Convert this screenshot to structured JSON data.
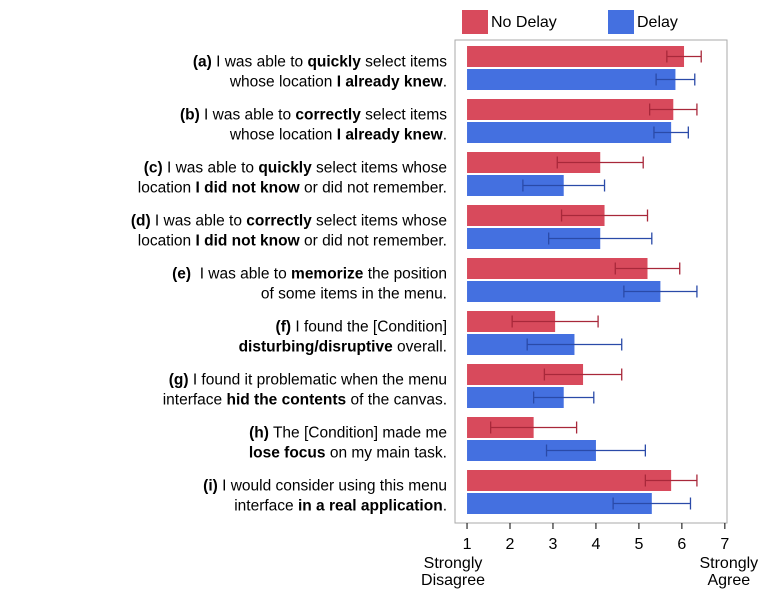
{
  "chart_data": {
    "type": "barh",
    "categories": [
      [
        [
          {
            "text": "(a)",
            "bold": true
          },
          {
            "text": " I was able to "
          },
          {
            "text": "quickly",
            "bold": true
          },
          {
            "text": " select items"
          }
        ],
        [
          {
            "text": "whose location "
          },
          {
            "text": "I already knew",
            "bold": true
          },
          {
            "text": "."
          }
        ]
      ],
      [
        [
          {
            "text": "(b)",
            "bold": true
          },
          {
            "text": " I was able to "
          },
          {
            "text": "correctly",
            "bold": true
          },
          {
            "text": " select items"
          }
        ],
        [
          {
            "text": "whose location "
          },
          {
            "text": "I already knew",
            "bold": true
          },
          {
            "text": "."
          }
        ]
      ],
      [
        [
          {
            "text": "(c)",
            "bold": true
          },
          {
            "text": " I was able to "
          },
          {
            "text": "quickly",
            "bold": true
          },
          {
            "text": " select items whose"
          }
        ],
        [
          {
            "text": "location "
          },
          {
            "text": "I did not know",
            "bold": true
          },
          {
            "text": " or did not remember."
          }
        ]
      ],
      [
        [
          {
            "text": "(d)",
            "bold": true
          },
          {
            "text": " I was able to "
          },
          {
            "text": "correctly",
            "bold": true
          },
          {
            "text": " select items whose"
          }
        ],
        [
          {
            "text": "location "
          },
          {
            "text": "I did not know",
            "bold": true
          },
          {
            "text": " or did not remember."
          }
        ]
      ],
      [
        [
          {
            "text": "(e)",
            "bold": true
          },
          {
            "text": "  I was able to "
          },
          {
            "text": "memorize",
            "bold": true
          },
          {
            "text": " the position"
          }
        ],
        [
          {
            "text": "of some items in the menu."
          }
        ]
      ],
      [
        [
          {
            "text": "(f)",
            "bold": true
          },
          {
            "text": " I found the [Condition]"
          }
        ],
        [
          {
            "text": "disturbing/disruptive",
            "bold": true
          },
          {
            "text": " overall."
          }
        ]
      ],
      [
        [
          {
            "text": "(g)",
            "bold": true
          },
          {
            "text": " I found it problematic when the menu"
          }
        ],
        [
          {
            "text": "interface "
          },
          {
            "text": "hid the contents",
            "bold": true
          },
          {
            "text": " of the canvas."
          }
        ]
      ],
      [
        [
          {
            "text": "(h)",
            "bold": true
          },
          {
            "text": " The [Condition] made me"
          }
        ],
        [
          {
            "text": "lose focus",
            "bold": true
          },
          {
            "text": " on my main task."
          }
        ]
      ],
      [
        [
          {
            "text": "(i)",
            "bold": true
          },
          {
            "text": " I would consider using this menu"
          }
        ],
        [
          {
            "text": "interface "
          },
          {
            "text": "in a real application",
            "bold": true
          },
          {
            "text": "."
          }
        ]
      ]
    ],
    "series": [
      {
        "name": "No Delay",
        "color": "#d84a5c",
        "error_color": "#a8283a",
        "values": [
          6.05,
          5.8,
          4.1,
          4.2,
          5.2,
          3.05,
          3.7,
          2.55,
          5.75
        ],
        "errors": [
          0.4,
          0.55,
          1.0,
          1.0,
          0.75,
          1.0,
          0.9,
          1.0,
          0.6
        ]
      },
      {
        "name": "Delay",
        "color": "#4470e0",
        "error_color": "#2a4aa8",
        "values": [
          5.85,
          5.75,
          3.25,
          4.1,
          5.5,
          3.5,
          3.25,
          4.0,
          5.3
        ],
        "errors": [
          0.45,
          0.4,
          0.95,
          1.2,
          0.85,
          1.1,
          0.7,
          1.15,
          0.9
        ]
      }
    ],
    "xlim": [
      0.72,
      7.05
    ],
    "xticks": [
      1,
      2,
      3,
      4,
      5,
      6,
      7
    ],
    "x_end_labels": [
      [
        "Strongly",
        "Disagree"
      ],
      [
        "Strongly",
        "Agree"
      ]
    ],
    "legend": "top"
  }
}
